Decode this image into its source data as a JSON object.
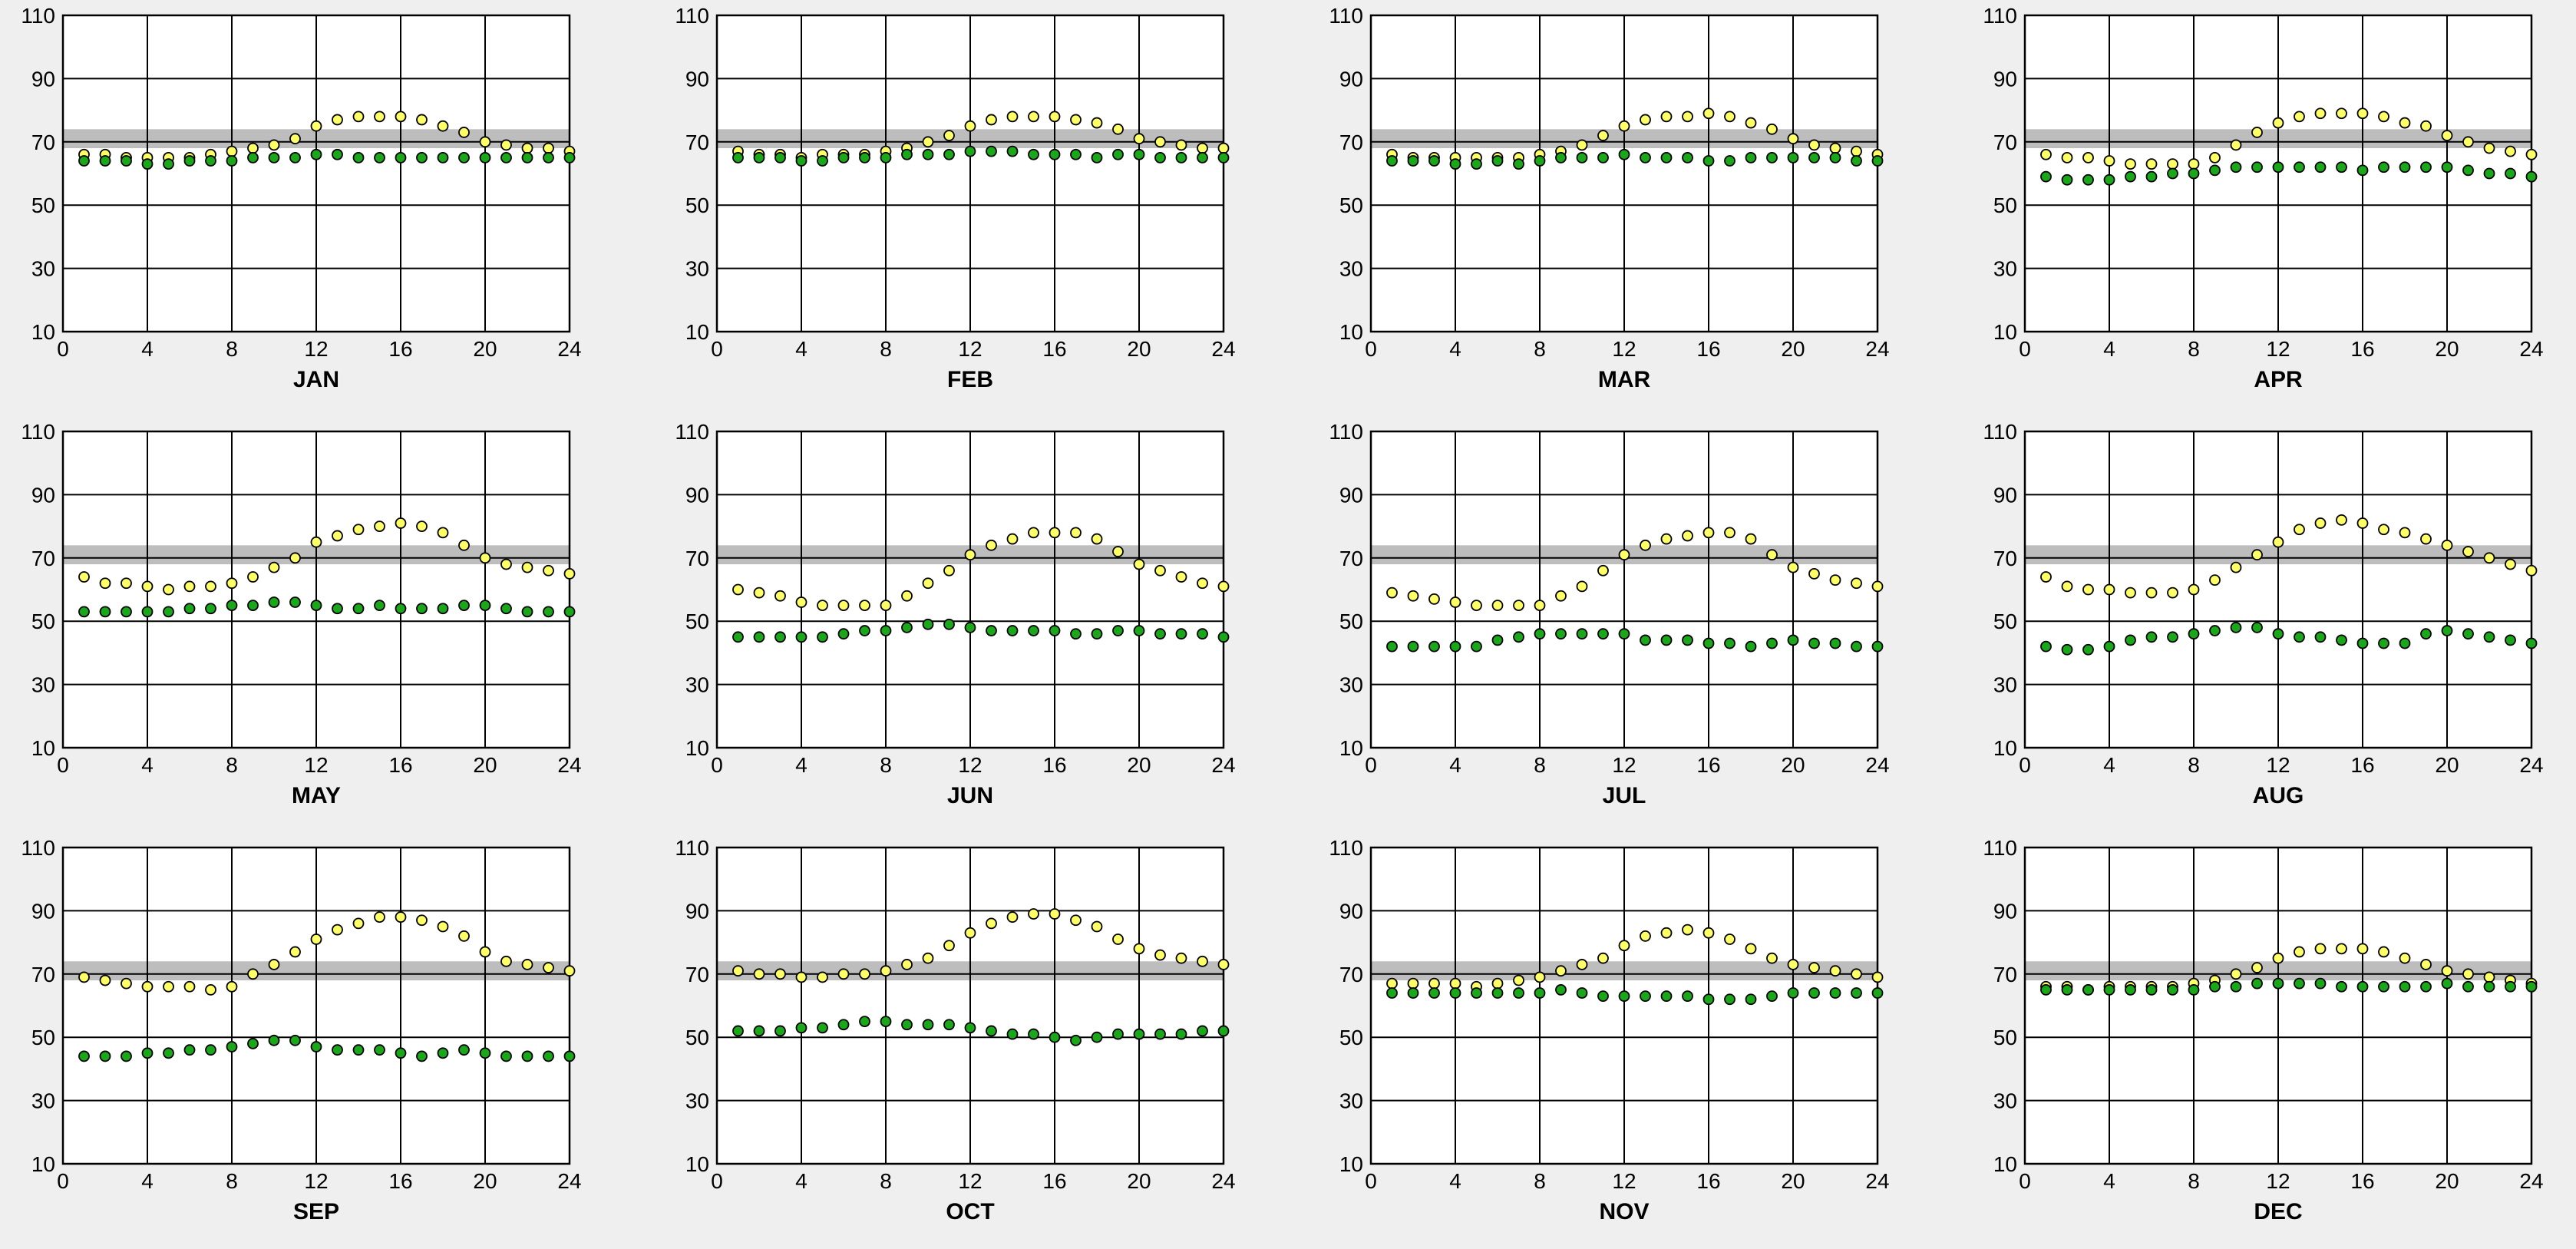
{
  "colors": {
    "background": "#efefef",
    "comfort_band": "#bdbdbd",
    "temperature_series": "#ffff66",
    "dewpoint_series": "#1aa81a",
    "marker_outline": "#000000",
    "gridline": "#000000"
  },
  "chart_data": [
    {
      "type": "scatter",
      "xlabel": "JAN",
      "xlim": [
        0,
        24
      ],
      "ylim": [
        10,
        110
      ],
      "xticks": [
        0,
        4,
        8,
        12,
        16,
        20,
        24
      ],
      "yticks": [
        10,
        30,
        50,
        70,
        90,
        110
      ],
      "grid": true,
      "band": [
        68,
        74
      ],
      "x": [
        1,
        2,
        3,
        4,
        5,
        6,
        7,
        8,
        9,
        10,
        11,
        12,
        13,
        14,
        15,
        16,
        17,
        18,
        19,
        20,
        21,
        22,
        23,
        24
      ],
      "series": [
        {
          "values": [
            66,
            66,
            65,
            65,
            65,
            65,
            66,
            67,
            68,
            69,
            71,
            75,
            77,
            78,
            78,
            78,
            77,
            75,
            73,
            70,
            69,
            68,
            68,
            67
          ]
        },
        {
          "values": [
            64,
            64,
            64,
            63,
            63,
            64,
            64,
            64,
            65,
            65,
            65,
            66,
            66,
            65,
            65,
            65,
            65,
            65,
            65,
            65,
            65,
            65,
            65,
            65
          ]
        }
      ]
    },
    {
      "type": "scatter",
      "xlabel": "FEB",
      "xlim": [
        0,
        24
      ],
      "ylim": [
        10,
        110
      ],
      "xticks": [
        0,
        4,
        8,
        12,
        16,
        20,
        24
      ],
      "yticks": [
        10,
        30,
        50,
        70,
        90,
        110
      ],
      "grid": true,
      "band": [
        68,
        74
      ],
      "x": [
        1,
        2,
        3,
        4,
        5,
        6,
        7,
        8,
        9,
        10,
        11,
        12,
        13,
        14,
        15,
        16,
        17,
        18,
        19,
        20,
        21,
        22,
        23,
        24
      ],
      "series": [
        {
          "values": [
            67,
            66,
            66,
            65,
            66,
            66,
            66,
            67,
            68,
            70,
            72,
            75,
            77,
            78,
            78,
            78,
            77,
            76,
            74,
            71,
            70,
            69,
            68,
            68
          ]
        },
        {
          "values": [
            65,
            65,
            65,
            64,
            64,
            65,
            65,
            65,
            66,
            66,
            66,
            67,
            67,
            67,
            66,
            66,
            66,
            65,
            66,
            66,
            65,
            65,
            65,
            65
          ]
        }
      ]
    },
    {
      "type": "scatter",
      "xlabel": "MAR",
      "xlim": [
        0,
        24
      ],
      "ylim": [
        10,
        110
      ],
      "xticks": [
        0,
        4,
        8,
        12,
        16,
        20,
        24
      ],
      "yticks": [
        10,
        30,
        50,
        70,
        90,
        110
      ],
      "grid": true,
      "band": [
        68,
        74
      ],
      "x": [
        1,
        2,
        3,
        4,
        5,
        6,
        7,
        8,
        9,
        10,
        11,
        12,
        13,
        14,
        15,
        16,
        17,
        18,
        19,
        20,
        21,
        22,
        23,
        24
      ],
      "series": [
        {
          "values": [
            66,
            65,
            65,
            65,
            65,
            65,
            65,
            66,
            67,
            69,
            72,
            75,
            77,
            78,
            78,
            79,
            78,
            76,
            74,
            71,
            69,
            68,
            67,
            66
          ]
        },
        {
          "values": [
            64,
            64,
            64,
            63,
            63,
            64,
            63,
            64,
            65,
            65,
            65,
            66,
            65,
            65,
            65,
            64,
            64,
            65,
            65,
            65,
            65,
            65,
            64,
            64
          ]
        }
      ]
    },
    {
      "type": "scatter",
      "xlabel": "APR",
      "xlim": [
        0,
        24
      ],
      "ylim": [
        10,
        110
      ],
      "xticks": [
        0,
        4,
        8,
        12,
        16,
        20,
        24
      ],
      "yticks": [
        10,
        30,
        50,
        70,
        90,
        110
      ],
      "grid": true,
      "band": [
        68,
        74
      ],
      "x": [
        1,
        2,
        3,
        4,
        5,
        6,
        7,
        8,
        9,
        10,
        11,
        12,
        13,
        14,
        15,
        16,
        17,
        18,
        19,
        20,
        21,
        22,
        23,
        24
      ],
      "series": [
        {
          "values": [
            66,
            65,
            65,
            64,
            63,
            63,
            63,
            63,
            65,
            69,
            73,
            76,
            78,
            79,
            79,
            79,
            78,
            76,
            75,
            72,
            70,
            68,
            67,
            66
          ]
        },
        {
          "values": [
            59,
            58,
            58,
            58,
            59,
            59,
            60,
            60,
            61,
            62,
            62,
            62,
            62,
            62,
            62,
            61,
            62,
            62,
            62,
            62,
            61,
            60,
            60,
            59
          ]
        }
      ]
    },
    {
      "type": "scatter",
      "xlabel": "MAY",
      "xlim": [
        0,
        24
      ],
      "ylim": [
        10,
        110
      ],
      "xticks": [
        0,
        4,
        8,
        12,
        16,
        20,
        24
      ],
      "yticks": [
        10,
        30,
        50,
        70,
        90,
        110
      ],
      "grid": true,
      "band": [
        68,
        74
      ],
      "x": [
        1,
        2,
        3,
        4,
        5,
        6,
        7,
        8,
        9,
        10,
        11,
        12,
        13,
        14,
        15,
        16,
        17,
        18,
        19,
        20,
        21,
        22,
        23,
        24
      ],
      "series": [
        {
          "values": [
            64,
            62,
            62,
            61,
            60,
            61,
            61,
            62,
            64,
            67,
            70,
            75,
            77,
            79,
            80,
            81,
            80,
            78,
            74,
            70,
            68,
            67,
            66,
            65
          ]
        },
        {
          "values": [
            53,
            53,
            53,
            53,
            53,
            54,
            54,
            55,
            55,
            56,
            56,
            55,
            54,
            54,
            55,
            54,
            54,
            54,
            55,
            55,
            54,
            53,
            53,
            53
          ]
        }
      ]
    },
    {
      "type": "scatter",
      "xlabel": "JUN",
      "xlim": [
        0,
        24
      ],
      "ylim": [
        10,
        110
      ],
      "xticks": [
        0,
        4,
        8,
        12,
        16,
        20,
        24
      ],
      "yticks": [
        10,
        30,
        50,
        70,
        90,
        110
      ],
      "grid": true,
      "band": [
        68,
        74
      ],
      "x": [
        1,
        2,
        3,
        4,
        5,
        6,
        7,
        8,
        9,
        10,
        11,
        12,
        13,
        14,
        15,
        16,
        17,
        18,
        19,
        20,
        21,
        22,
        23,
        24
      ],
      "series": [
        {
          "values": [
            60,
            59,
            58,
            56,
            55,
            55,
            55,
            55,
            58,
            62,
            66,
            71,
            74,
            76,
            78,
            78,
            78,
            76,
            72,
            68,
            66,
            64,
            62,
            61
          ]
        },
        {
          "values": [
            45,
            45,
            45,
            45,
            45,
            46,
            47,
            47,
            48,
            49,
            49,
            48,
            47,
            47,
            47,
            47,
            46,
            46,
            47,
            47,
            46,
            46,
            46,
            45
          ]
        }
      ]
    },
    {
      "type": "scatter",
      "xlabel": "JUL",
      "xlim": [
        0,
        24
      ],
      "ylim": [
        10,
        110
      ],
      "xticks": [
        0,
        4,
        8,
        12,
        16,
        20,
        24
      ],
      "yticks": [
        10,
        30,
        50,
        70,
        90,
        110
      ],
      "grid": true,
      "band": [
        68,
        74
      ],
      "x": [
        1,
        2,
        3,
        4,
        5,
        6,
        7,
        8,
        9,
        10,
        11,
        12,
        13,
        14,
        15,
        16,
        17,
        18,
        19,
        20,
        21,
        22,
        23,
        24
      ],
      "series": [
        {
          "values": [
            59,
            58,
            57,
            56,
            55,
            55,
            55,
            55,
            58,
            61,
            66,
            71,
            74,
            76,
            77,
            78,
            78,
            76,
            71,
            67,
            65,
            63,
            62,
            61
          ]
        },
        {
          "values": [
            42,
            42,
            42,
            42,
            42,
            44,
            45,
            46,
            46,
            46,
            46,
            46,
            44,
            44,
            44,
            43,
            43,
            42,
            43,
            44,
            43,
            43,
            42,
            42
          ]
        }
      ]
    },
    {
      "type": "scatter",
      "xlabel": "AUG",
      "xlim": [
        0,
        24
      ],
      "ylim": [
        10,
        110
      ],
      "xticks": [
        0,
        4,
        8,
        12,
        16,
        20,
        24
      ],
      "yticks": [
        10,
        30,
        50,
        70,
        90,
        110
      ],
      "grid": true,
      "band": [
        68,
        74
      ],
      "x": [
        1,
        2,
        3,
        4,
        5,
        6,
        7,
        8,
        9,
        10,
        11,
        12,
        13,
        14,
        15,
        16,
        17,
        18,
        19,
        20,
        21,
        22,
        23,
        24
      ],
      "series": [
        {
          "values": [
            64,
            61,
            60,
            60,
            59,
            59,
            59,
            60,
            63,
            67,
            71,
            75,
            79,
            81,
            82,
            81,
            79,
            78,
            76,
            74,
            72,
            70,
            68,
            66
          ]
        },
        {
          "values": [
            42,
            41,
            41,
            42,
            44,
            45,
            45,
            46,
            47,
            48,
            48,
            46,
            45,
            45,
            44,
            43,
            43,
            43,
            46,
            47,
            46,
            45,
            44,
            43
          ]
        }
      ]
    },
    {
      "type": "scatter",
      "xlabel": "SEP",
      "xlim": [
        0,
        24
      ],
      "ylim": [
        10,
        110
      ],
      "xticks": [
        0,
        4,
        8,
        12,
        16,
        20,
        24
      ],
      "yticks": [
        10,
        30,
        50,
        70,
        90,
        110
      ],
      "grid": true,
      "band": [
        68,
        74
      ],
      "x": [
        1,
        2,
        3,
        4,
        5,
        6,
        7,
        8,
        9,
        10,
        11,
        12,
        13,
        14,
        15,
        16,
        17,
        18,
        19,
        20,
        21,
        22,
        23,
        24
      ],
      "series": [
        {
          "values": [
            69,
            68,
            67,
            66,
            66,
            66,
            65,
            66,
            70,
            73,
            77,
            81,
            84,
            86,
            88,
            88,
            87,
            85,
            82,
            77,
            74,
            73,
            72,
            71
          ]
        },
        {
          "values": [
            44,
            44,
            44,
            45,
            45,
            46,
            46,
            47,
            48,
            49,
            49,
            47,
            46,
            46,
            46,
            45,
            44,
            45,
            46,
            45,
            44,
            44,
            44,
            44
          ]
        }
      ]
    },
    {
      "type": "scatter",
      "xlabel": "OCT",
      "xlim": [
        0,
        24
      ],
      "ylim": [
        10,
        110
      ],
      "xticks": [
        0,
        4,
        8,
        12,
        16,
        20,
        24
      ],
      "yticks": [
        10,
        30,
        50,
        70,
        90,
        110
      ],
      "grid": true,
      "band": [
        68,
        74
      ],
      "x": [
        1,
        2,
        3,
        4,
        5,
        6,
        7,
        8,
        9,
        10,
        11,
        12,
        13,
        14,
        15,
        16,
        17,
        18,
        19,
        20,
        21,
        22,
        23,
        24
      ],
      "series": [
        {
          "values": [
            71,
            70,
            70,
            69,
            69,
            70,
            70,
            71,
            73,
            75,
            79,
            83,
            86,
            88,
            89,
            89,
            87,
            85,
            81,
            78,
            76,
            75,
            74,
            73
          ]
        },
        {
          "values": [
            52,
            52,
            52,
            53,
            53,
            54,
            55,
            55,
            54,
            54,
            54,
            53,
            52,
            51,
            51,
            50,
            49,
            50,
            51,
            51,
            51,
            51,
            52,
            52
          ]
        }
      ]
    },
    {
      "type": "scatter",
      "xlabel": "NOV",
      "xlim": [
        0,
        24
      ],
      "ylim": [
        10,
        110
      ],
      "xticks": [
        0,
        4,
        8,
        12,
        16,
        20,
        24
      ],
      "yticks": [
        10,
        30,
        50,
        70,
        90,
        110
      ],
      "grid": true,
      "band": [
        68,
        74
      ],
      "x": [
        1,
        2,
        3,
        4,
        5,
        6,
        7,
        8,
        9,
        10,
        11,
        12,
        13,
        14,
        15,
        16,
        17,
        18,
        19,
        20,
        21,
        22,
        23,
        24
      ],
      "series": [
        {
          "values": [
            67,
            67,
            67,
            67,
            66,
            67,
            68,
            69,
            71,
            73,
            75,
            79,
            82,
            83,
            84,
            83,
            81,
            78,
            75,
            73,
            72,
            71,
            70,
            69
          ]
        },
        {
          "values": [
            64,
            64,
            64,
            64,
            64,
            64,
            64,
            64,
            65,
            64,
            63,
            63,
            63,
            63,
            63,
            62,
            62,
            62,
            63,
            64,
            64,
            64,
            64,
            64
          ]
        }
      ]
    },
    {
      "type": "scatter",
      "xlabel": "DEC",
      "xlim": [
        0,
        24
      ],
      "ylim": [
        10,
        110
      ],
      "xticks": [
        0,
        4,
        8,
        12,
        16,
        20,
        24
      ],
      "yticks": [
        10,
        30,
        50,
        70,
        90,
        110
      ],
      "grid": true,
      "band": [
        68,
        74
      ],
      "x": [
        1,
        2,
        3,
        4,
        5,
        6,
        7,
        8,
        9,
        10,
        11,
        12,
        13,
        14,
        15,
        16,
        17,
        18,
        19,
        20,
        21,
        22,
        23,
        24
      ],
      "series": [
        {
          "values": [
            66,
            66,
            65,
            66,
            66,
            66,
            66,
            67,
            68,
            70,
            72,
            75,
            77,
            78,
            78,
            78,
            77,
            75,
            73,
            71,
            70,
            69,
            68,
            67
          ]
        },
        {
          "values": [
            65,
            65,
            65,
            65,
            65,
            65,
            65,
            65,
            66,
            66,
            67,
            67,
            67,
            67,
            66,
            66,
            66,
            66,
            66,
            67,
            66,
            66,
            66,
            66
          ]
        }
      ]
    }
  ]
}
